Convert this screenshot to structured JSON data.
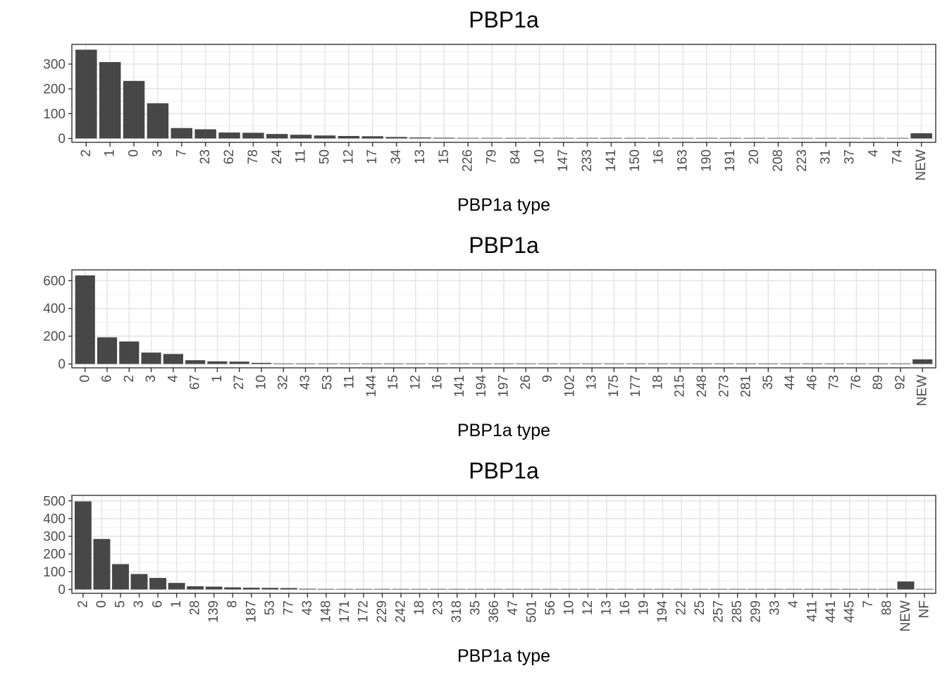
{
  "chart_data": [
    {
      "type": "bar",
      "title": "PBP1a",
      "xlabel": "PBP1a type",
      "ylabel": "",
      "ylim": [
        0,
        375
      ],
      "yticks": [
        0,
        100,
        200,
        300
      ],
      "grid": true,
      "bar_color": "#474747",
      "categories": [
        "2",
        "1",
        "0",
        "3",
        "7",
        "23",
        "62",
        "78",
        "24",
        "11",
        "50",
        "12",
        "17",
        "34",
        "13",
        "15",
        "226",
        "79",
        "84",
        "10",
        "147",
        "233",
        "141",
        "150",
        "16",
        "163",
        "190",
        "191",
        "20",
        "208",
        "223",
        "31",
        "37",
        "4",
        "74",
        "NEW"
      ],
      "values": [
        358,
        308,
        232,
        142,
        42,
        37,
        24,
        23,
        18,
        15,
        12,
        10,
        9,
        6,
        4,
        3,
        1,
        1,
        1,
        1,
        1,
        1,
        1,
        1,
        1,
        1,
        1,
        1,
        1,
        1,
        1,
        1,
        1,
        1,
        1,
        21
      ]
    },
    {
      "type": "bar",
      "title": "PBP1a",
      "xlabel": "PBP1a type",
      "ylabel": "",
      "ylim": [
        0,
        670
      ],
      "yticks": [
        0,
        200,
        400,
        600
      ],
      "grid": true,
      "bar_color": "#474747",
      "categories": [
        "0",
        "6",
        "2",
        "3",
        "4",
        "67",
        "1",
        "27",
        "10",
        "32",
        "43",
        "53",
        "11",
        "144",
        "15",
        "12",
        "16",
        "141",
        "194",
        "197",
        "26",
        "9",
        "102",
        "13",
        "175",
        "177",
        "18",
        "215",
        "248",
        "273",
        "281",
        "35",
        "44",
        "46",
        "73",
        "76",
        "89",
        "92",
        "NEW"
      ],
      "values": [
        638,
        192,
        162,
        82,
        72,
        27,
        19,
        17,
        8,
        3,
        2,
        2,
        2,
        2,
        1,
        1,
        1,
        1,
        1,
        1,
        1,
        1,
        1,
        1,
        1,
        1,
        1,
        1,
        1,
        1,
        1,
        1,
        1,
        1,
        1,
        1,
        1,
        1,
        33
      ]
    },
    {
      "type": "bar",
      "title": "PBP1a",
      "xlabel": "PBP1a type",
      "ylabel": "",
      "ylim": [
        0,
        525
      ],
      "yticks": [
        0,
        100,
        200,
        300,
        400,
        500
      ],
      "grid": true,
      "bar_color": "#474747",
      "categories": [
        "2",
        "0",
        "5",
        "3",
        "6",
        "1",
        "28",
        "139",
        "8",
        "187",
        "53",
        "77",
        "43",
        "148",
        "171",
        "172",
        "229",
        "242",
        "18",
        "23",
        "318",
        "35",
        "366",
        "47",
        "501",
        "56",
        "10",
        "12",
        "13",
        "16",
        "19",
        "194",
        "22",
        "25",
        "257",
        "285",
        "299",
        "33",
        "4",
        "411",
        "441",
        "445",
        "7",
        "88",
        "NEW",
        "NF"
      ],
      "values": [
        497,
        285,
        143,
        87,
        65,
        37,
        18,
        16,
        12,
        10,
        9,
        8,
        4,
        1,
        1,
        1,
        1,
        1,
        1,
        1,
        1,
        1,
        1,
        1,
        1,
        1,
        1,
        1,
        1,
        1,
        1,
        1,
        1,
        1,
        1,
        1,
        1,
        1,
        1,
        1,
        1,
        1,
        1,
        1,
        45,
        1
      ]
    }
  ]
}
